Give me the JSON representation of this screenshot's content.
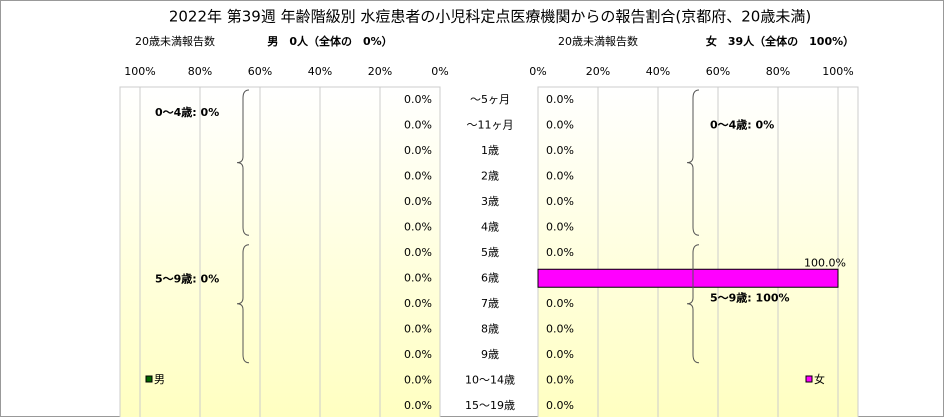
{
  "chart_data": {
    "type": "bar",
    "orientation": "horizontal",
    "title": "2022年 第39週 年齢階級別 水痘患者の小児科定点医療機関からの報告割合(京都府、20歳未満)",
    "categories": [
      "～5ヶ月",
      "～11ヶ月",
      "1歳",
      "2歳",
      "3歳",
      "4歳",
      "5歳",
      "6歳",
      "7歳",
      "8歳",
      "9歳",
      "10～14歳",
      "15～19歳"
    ],
    "xlim": [
      0,
      100
    ],
    "xticks": [
      {
        "value": 0,
        "label": "0%"
      },
      {
        "value": 20,
        "label": "20%"
      },
      {
        "value": 40,
        "label": "40%"
      },
      {
        "value": 60,
        "label": "60%"
      },
      {
        "value": 80,
        "label": "80%"
      },
      {
        "value": 100,
        "label": "100%"
      }
    ],
    "grid": true,
    "series": [
      {
        "name": "男",
        "color": "#006600",
        "side": "left",
        "count_label": "20歳未満報告数",
        "summary": "男　0人（全体の　0%）",
        "annotations": [
          "0～4歳: 0%",
          "5～9歳: 0%"
        ],
        "values": [
          0,
          0,
          0,
          0,
          0,
          0,
          0,
          0,
          0,
          0,
          0,
          0,
          0
        ],
        "value_labels": [
          "0.0%",
          "0.0%",
          "0.0%",
          "0.0%",
          "0.0%",
          "0.0%",
          "0.0%",
          "0.0%",
          "0.0%",
          "0.0%",
          "0.0%",
          "0.0%",
          "0.0%"
        ]
      },
      {
        "name": "女",
        "color": "#ff00ff",
        "side": "right",
        "count_label": "20歳未満報告数",
        "summary": "女　39人（全体の　100%）",
        "annotations": [
          "0～4歳: 0%",
          "5～9歳: 100%"
        ],
        "values": [
          0,
          0,
          0,
          0,
          0,
          0,
          0,
          100,
          0,
          0,
          0,
          0,
          0
        ],
        "value_labels": [
          "0.0%",
          "0.0%",
          "0.0%",
          "0.0%",
          "0.0%",
          "0.0%",
          "0.0%",
          "100.0%",
          "0.0%",
          "0.0%",
          "0.0%",
          "0.0%",
          "0.0%"
        ]
      }
    ]
  }
}
